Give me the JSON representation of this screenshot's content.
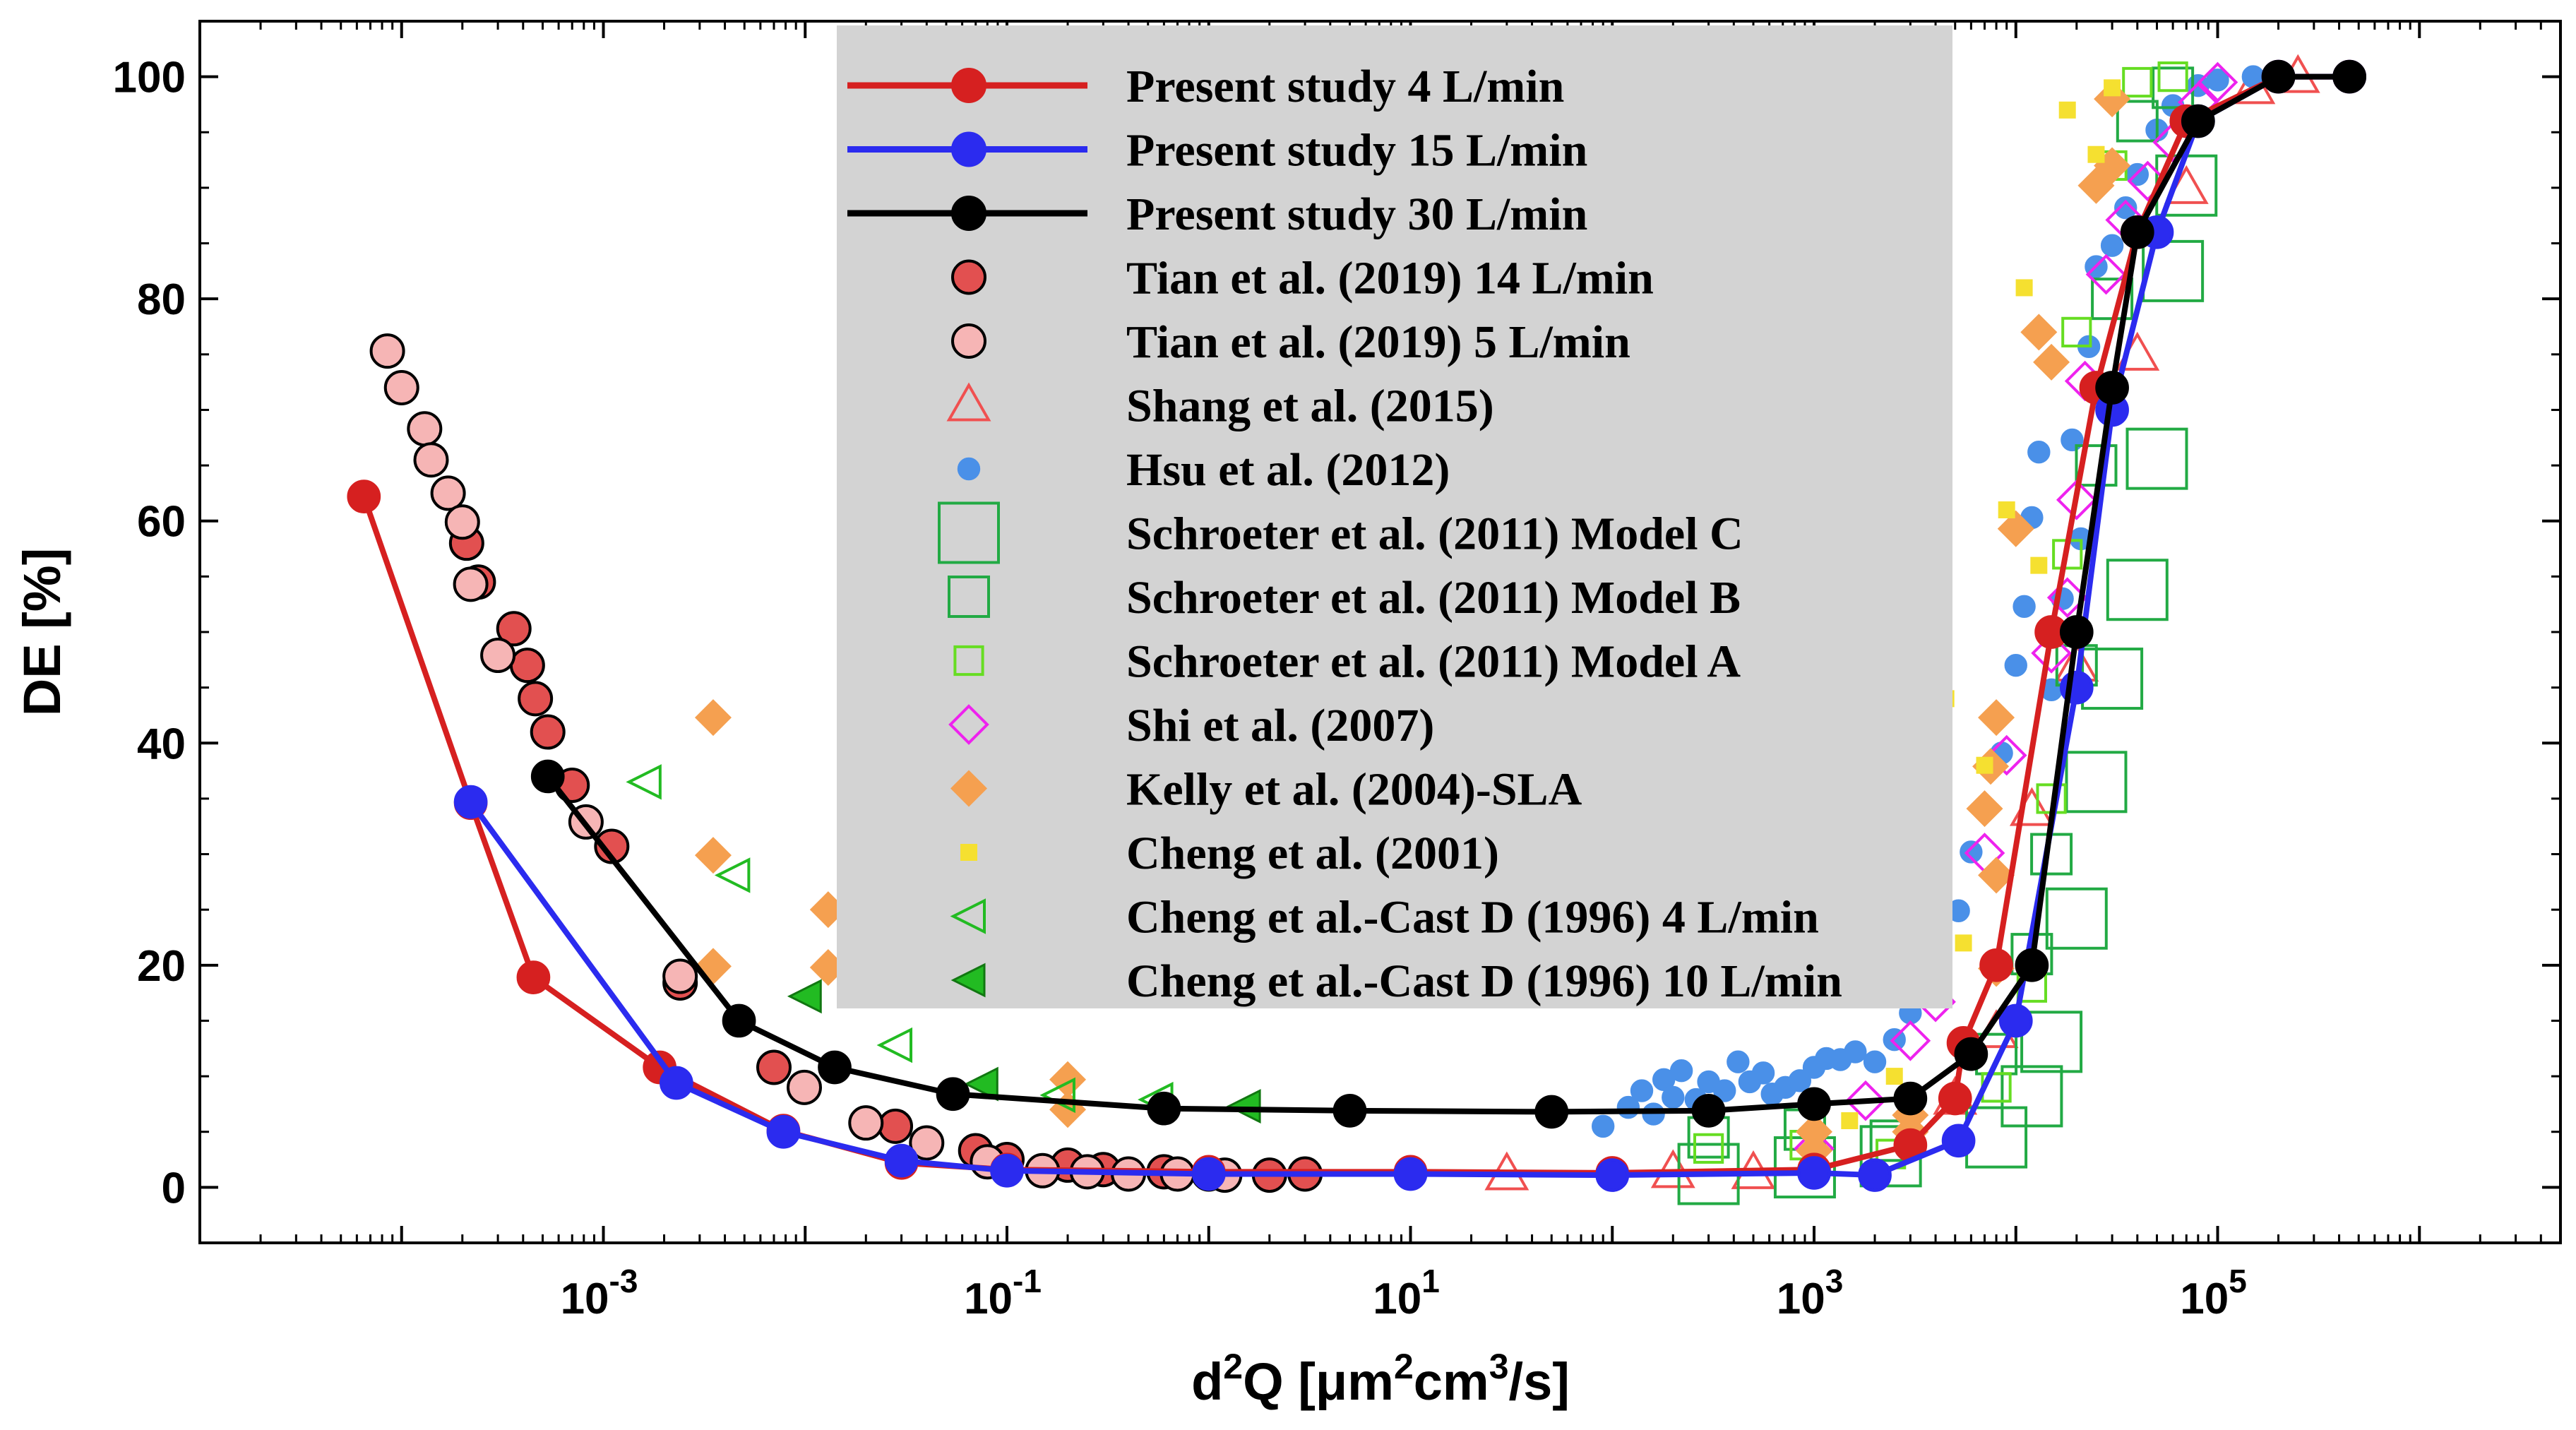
{
  "chart_data": {
    "type": "scatter",
    "title": "",
    "xlabel": "d²Q [μm²cm³/s]",
    "ylabel": "DE [%]",
    "xscale": "log",
    "xlim": [
      1e-05,
      5000000
    ],
    "ylim": [
      -5,
      105
    ],
    "x_ticks": [
      {
        "value": 0.001,
        "base": "10",
        "exp": "-3"
      },
      {
        "value": 0.1,
        "base": "10",
        "exp": "-1"
      },
      {
        "value": 10,
        "base": "10",
        "exp": "1"
      },
      {
        "value": 1000,
        "base": "10",
        "exp": "3"
      },
      {
        "value": 100000,
        "base": "10",
        "exp": "5"
      }
    ],
    "y_ticks": [
      0,
      20,
      40,
      60,
      80,
      100
    ],
    "legend_position": "top-center",
    "colors": {
      "red": "#d62020",
      "blue": "#2b2bef",
      "black": "#000000",
      "tian14": "#e25050",
      "tian5": "#f6b5b5",
      "shang": "#f05050",
      "hsu": "#4a90e8",
      "green": "#22aa44",
      "lime": "#66dd22",
      "magenta": "#ee22ee",
      "orange": "#f5a050",
      "yellow": "#f5e030",
      "legendbg": "#d3d3d3"
    },
    "series": [
      {
        "name": "Present study 4 L/min",
        "marker": "circle",
        "line": true,
        "color": "#d62020",
        "stroke": "#d62020",
        "size": 1.0,
        "points": [
          [
            6.5e-05,
            62.2
          ],
          [
            0.00022,
            34.6
          ],
          [
            0.00045,
            18.9
          ],
          [
            0.0019,
            10.8
          ],
          [
            0.0078,
            5.1
          ],
          [
            0.03,
            2.2
          ],
          [
            0.1,
            1.6
          ],
          [
            1,
            1.4
          ],
          [
            10,
            1.4
          ],
          [
            100,
            1.3
          ],
          [
            1000,
            1.6
          ],
          [
            3000,
            3.8
          ],
          [
            5000,
            8
          ],
          [
            5500,
            13
          ],
          [
            8000,
            20
          ],
          [
            15000,
            50
          ],
          [
            25000,
            72
          ],
          [
            40000,
            86
          ],
          [
            70000,
            96
          ],
          [
            200000,
            100
          ],
          [
            450000,
            100
          ]
        ]
      },
      {
        "name": "Present study 15 L/min",
        "marker": "circle",
        "line": true,
        "color": "#2b2bef",
        "stroke": "#2b2bef",
        "size": 1.0,
        "points": [
          [
            0.00022,
            34.7
          ],
          [
            0.0023,
            9.4
          ],
          [
            0.0078,
            5.0
          ],
          [
            0.03,
            2.4
          ],
          [
            0.1,
            1.5
          ],
          [
            1,
            1.2
          ],
          [
            10,
            1.2
          ],
          [
            100,
            1.1
          ],
          [
            1000,
            1.3
          ],
          [
            2000,
            1.1
          ],
          [
            5200,
            4.2
          ],
          [
            10000,
            15
          ],
          [
            20000,
            45
          ],
          [
            30000,
            70
          ],
          [
            50000,
            86
          ],
          [
            80000,
            96
          ],
          [
            200000,
            100
          ],
          [
            450000,
            100
          ]
        ]
      },
      {
        "name": "Present study 30 L/min",
        "marker": "circle",
        "line": true,
        "color": "#000000",
        "stroke": "#000000",
        "size": 1.0,
        "points": [
          [
            0.00053,
            37.0
          ],
          [
            0.0047,
            15.0
          ],
          [
            0.014,
            10.8
          ],
          [
            0.054,
            8.4
          ],
          [
            0.6,
            7.1
          ],
          [
            5,
            6.9
          ],
          [
            50,
            6.8
          ],
          [
            300,
            6.9
          ],
          [
            1000,
            7.5
          ],
          [
            3000,
            8.0
          ],
          [
            6000,
            12
          ],
          [
            12000,
            20
          ],
          [
            20000,
            50
          ],
          [
            30000,
            72
          ],
          [
            40000,
            86
          ],
          [
            80000,
            96
          ],
          [
            200000,
            100
          ],
          [
            450000,
            100
          ]
        ]
      },
      {
        "name": "Tian et al. (2019) 14 L/min",
        "marker": "circle",
        "line": false,
        "color": "#e25050",
        "stroke": "#000000",
        "size": 1.0,
        "points": [
          [
            0.00021,
            58
          ],
          [
            0.00024,
            54.5
          ],
          [
            0.00036,
            50.3
          ],
          [
            0.00042,
            47
          ],
          [
            0.00046,
            44
          ],
          [
            0.00053,
            41
          ],
          [
            0.0007,
            36.2
          ],
          [
            0.0011,
            30.7
          ],
          [
            0.0024,
            18.4
          ],
          [
            0.007,
            10.8
          ],
          [
            0.028,
            5.5
          ],
          [
            0.07,
            3.3
          ],
          [
            0.1,
            2.5
          ],
          [
            0.2,
            2
          ],
          [
            0.3,
            1.6
          ],
          [
            0.6,
            1.4
          ],
          [
            1,
            1.2
          ],
          [
            2,
            1.1
          ],
          [
            3,
            1.2
          ]
        ]
      },
      {
        "name": "Tian et al. (2019) 5 L/min",
        "marker": "circle",
        "line": false,
        "color": "#f6b5b5",
        "stroke": "#000000",
        "size": 1.0,
        "points": [
          [
            8.5e-05,
            75.3
          ],
          [
            0.0001,
            72
          ],
          [
            0.00013,
            68.3
          ],
          [
            0.00014,
            65.5
          ],
          [
            0.00017,
            62.5
          ],
          [
            0.0002,
            59.9
          ],
          [
            0.00022,
            54.3
          ],
          [
            0.0003,
            47.9
          ],
          [
            0.00082,
            32.9
          ],
          [
            0.0024,
            19
          ],
          [
            0.0099,
            9
          ],
          [
            0.02,
            5.8
          ],
          [
            0.04,
            4
          ],
          [
            0.08,
            2.3
          ],
          [
            0.15,
            1.5
          ],
          [
            0.25,
            1.4
          ],
          [
            0.4,
            1.2
          ],
          [
            0.7,
            1.2
          ],
          [
            1.2,
            1.1
          ]
        ]
      },
      {
        "name": "Shang et al. (2015)",
        "marker": "triangle",
        "line": false,
        "color": "none",
        "stroke": "#f05050",
        "size": 1.0,
        "points": [
          [
            30,
            1.2
          ],
          [
            200,
            1.4
          ],
          [
            500,
            1.3
          ],
          [
            5000,
            8
          ],
          [
            8000,
            14
          ],
          [
            12000,
            34
          ],
          [
            20000,
            47
          ],
          [
            40000,
            75
          ],
          [
            70000,
            90
          ],
          [
            150000,
            99
          ],
          [
            250000,
            100
          ]
        ]
      },
      {
        "name": "Hsu et al. (2012)",
        "marker": "dot",
        "line": false,
        "color": "#4a90e8",
        "stroke": "#4a90e8",
        "size": 0.8,
        "points": [
          [
            90,
            5.5
          ],
          [
            120,
            7.2
          ],
          [
            140,
            8.7
          ],
          [
            160,
            6.6
          ],
          [
            180,
            9.7
          ],
          [
            200,
            8.1
          ],
          [
            220,
            10.5
          ],
          [
            260,
            7.9
          ],
          [
            300,
            9.5
          ],
          [
            360,
            8.7
          ],
          [
            420,
            11.3
          ],
          [
            480,
            9.5
          ],
          [
            560,
            10.3
          ],
          [
            620,
            8.4
          ],
          [
            720,
            9.0
          ],
          [
            850,
            9.6
          ],
          [
            1000,
            10.8
          ],
          [
            1150,
            11.6
          ],
          [
            1350,
            11.5
          ],
          [
            1600,
            12.2
          ],
          [
            2000,
            11.3
          ],
          [
            2500,
            13.3
          ],
          [
            3000,
            15.7
          ],
          [
            3500,
            18.2
          ],
          [
            4200,
            21.1
          ],
          [
            5200,
            24.9
          ],
          [
            6000,
            30.2
          ],
          [
            7000,
            34.1
          ],
          [
            8500,
            39.1
          ],
          [
            10000,
            47
          ],
          [
            11000,
            52.3
          ],
          [
            12000,
            60.3
          ],
          [
            13000,
            66.2
          ],
          [
            15000,
            44.8
          ],
          [
            17000,
            53
          ],
          [
            19000,
            67.3
          ],
          [
            21000,
            58.4
          ],
          [
            23000,
            75.7
          ],
          [
            25000,
            82.9
          ],
          [
            30000,
            84.8
          ],
          [
            35000,
            88.2
          ],
          [
            40000,
            91.2
          ],
          [
            50000,
            95.2
          ],
          [
            60000,
            97.4
          ],
          [
            80000,
            99.2
          ],
          [
            100000,
            99.7
          ],
          [
            150000,
            100
          ]
        ]
      },
      {
        "name": "Schroeter et al. (2011) Model C",
        "marker": "square",
        "line": false,
        "color": "none",
        "stroke": "#22aa44",
        "size": 1.5,
        "points": [
          [
            300,
            1.2
          ],
          [
            900,
            1.8
          ],
          [
            2400,
            2.8
          ],
          [
            8000,
            4.5
          ],
          [
            12000,
            8.2
          ],
          [
            15000,
            13.1
          ],
          [
            20000,
            24.2
          ],
          [
            25000,
            36.5
          ],
          [
            30000,
            45.8
          ],
          [
            40000,
            53.8
          ],
          [
            50000,
            65.6
          ],
          [
            60000,
            82.5
          ],
          [
            70000,
            90.2
          ]
        ]
      },
      {
        "name": "Schroeter et al. (2011) Model B",
        "marker": "square",
        "line": false,
        "color": "none",
        "stroke": "#22aa44",
        "size": 1.0,
        "points": [
          [
            300,
            4.5
          ],
          [
            900,
            5.2
          ],
          [
            2400,
            4.2
          ],
          [
            8000,
            12
          ],
          [
            12000,
            21
          ],
          [
            15000,
            30
          ],
          [
            20000,
            47
          ],
          [
            25000,
            65
          ],
          [
            30000,
            80
          ],
          [
            40000,
            96
          ],
          [
            60000,
            99
          ]
        ]
      },
      {
        "name": "Schroeter et al. (2011) Model A",
        "marker": "square",
        "line": false,
        "color": "none",
        "stroke": "#66dd22",
        "size": 0.7,
        "points": [
          [
            300,
            3.5
          ],
          [
            900,
            3.8
          ],
          [
            2400,
            3
          ],
          [
            8000,
            9
          ],
          [
            12000,
            18
          ],
          [
            15000,
            35
          ],
          [
            18000,
            57
          ],
          [
            20000,
            77
          ],
          [
            30000,
            92
          ],
          [
            40000,
            99.5
          ],
          [
            60000,
            100
          ]
        ]
      },
      {
        "name": "Shi et al. (2007)",
        "marker": "diamond",
        "line": false,
        "color": "none",
        "stroke": "#ee22ee",
        "size": 1.0,
        "points": [
          [
            1000,
            3.5
          ],
          [
            1800,
            7.8
          ],
          [
            3000,
            13.2
          ],
          [
            4000,
            16.7
          ],
          [
            7000,
            30.1
          ],
          [
            9000,
            38.9
          ],
          [
            15000,
            48.1
          ],
          [
            18000,
            53.1
          ],
          [
            20000,
            61.9
          ],
          [
            22000,
            72.6
          ],
          [
            28000,
            82.2
          ],
          [
            35000,
            87.1
          ],
          [
            45000,
            90.6
          ],
          [
            60000,
            94.1
          ],
          [
            80000,
            97.7
          ],
          [
            100000,
            99.5
          ]
        ]
      },
      {
        "name": "Kelly et al. (2004)-SLA",
        "marker": "diamond_filled",
        "line": false,
        "color": "#f5a050",
        "stroke": "#f5a050",
        "size": 1.0,
        "points": [
          [
            0.0035,
            42.3
          ],
          [
            0.0035,
            29.9
          ],
          [
            0.0035,
            19.9
          ],
          [
            0.013,
            25.0
          ],
          [
            0.013,
            19.8
          ],
          [
            0.2,
            9.7
          ],
          [
            0.2,
            7.0
          ],
          [
            1000,
            5.0
          ],
          [
            1000,
            3.3
          ],
          [
            3000,
            5.0
          ],
          [
            3000,
            6.5
          ],
          [
            7000,
            34.1
          ],
          [
            7500,
            37.9
          ],
          [
            8000,
            42.3
          ],
          [
            8000,
            28.1
          ],
          [
            8000,
            19.7
          ],
          [
            10000,
            59.3
          ],
          [
            13000,
            77
          ],
          [
            15000,
            74.3
          ],
          [
            25000,
            90.2
          ],
          [
            30000,
            92
          ],
          [
            30000,
            98
          ]
        ]
      },
      {
        "name": "Cheng et al. (2001)",
        "marker": "square_small",
        "line": false,
        "color": "#f5e030",
        "stroke": "#f5e030",
        "size": 1.0,
        "points": [
          [
            1000,
            2.0
          ],
          [
            1500,
            6.0
          ],
          [
            2500,
            10.0
          ],
          [
            3500,
            17.0
          ],
          [
            4500,
            44.0
          ],
          [
            5500,
            22.0
          ],
          [
            7000,
            38.0
          ],
          [
            9000,
            61.0
          ],
          [
            11000,
            81.0
          ],
          [
            13000,
            56.0
          ],
          [
            18000,
            97.0
          ],
          [
            25000,
            93.0
          ],
          [
            30000,
            99.0
          ]
        ]
      },
      {
        "name": "Cheng et al.-Cast D (1996) 4 L/min",
        "marker": "tri_left",
        "line": false,
        "color": "none",
        "stroke": "#22bb22",
        "size": 1.0,
        "points": [
          [
            0.0016,
            36.5
          ],
          [
            0.0044,
            28.1
          ],
          [
            0.028,
            12.8
          ],
          [
            0.18,
            8.3
          ],
          [
            0.55,
            7.9
          ]
        ]
      },
      {
        "name": "Cheng et al.-Cast D (1996) 10 L/min",
        "marker": "tri_left_filled",
        "line": false,
        "color": "#22bb22",
        "stroke": "#117711",
        "size": 1.0,
        "points": [
          [
            0.01,
            17.2
          ],
          [
            0.075,
            9.3
          ],
          [
            1.5,
            7.3
          ]
        ]
      }
    ]
  }
}
